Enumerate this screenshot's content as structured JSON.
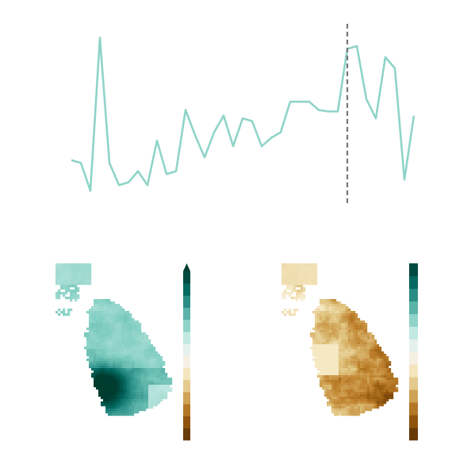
{
  "chart_data": [
    {
      "type": "line",
      "title": "",
      "xlabel": "",
      "ylabel": "",
      "grid": false,
      "axes_visible": false,
      "x": [
        1,
        2,
        3,
        4,
        5,
        6,
        7,
        8,
        9,
        10,
        11,
        12,
        13,
        14,
        15,
        16,
        17,
        18,
        19,
        20,
        21,
        22,
        23,
        24,
        25,
        26,
        27,
        28,
        29,
        30,
        31,
        32,
        33,
        34,
        35,
        36,
        37
      ],
      "series": [
        {
          "color": "#8fd4c8",
          "values": [
            -0.4,
            -0.5,
            -1.5,
            4.0,
            -0.5,
            -1.3,
            -1.2,
            -0.8,
            -1.3,
            0.3,
            -0.9,
            -0.8,
            1.4,
            0.5,
            -0.3,
            0.6,
            1.2,
            0.1,
            1.1,
            1.0,
            0.1,
            0.4,
            0.6,
            1.7,
            1.7,
            1.7,
            1.4,
            1.35,
            1.35,
            3.6,
            3.7,
            1.8,
            1.1,
            3.3,
            2.9,
            -1.1,
            1.2
          ]
        }
      ],
      "marker_line": {
        "x": 30,
        "style": "dashed",
        "color": "#777777"
      },
      "ylim": [
        -2.0,
        4.5
      ]
    },
    {
      "type": "heatmap",
      "title": "",
      "colormap": "BrBG",
      "colorbar": {
        "orientation": "vertical",
        "extend": "max",
        "levels": 14,
        "tick_labels": []
      },
      "colors": [
        "#543005",
        "#8c510a",
        "#bf812d",
        "#dfc27d",
        "#f6e8c3",
        "#f5f5f5",
        "#c7eae5",
        "#80cdc1",
        "#35978f",
        "#01665e",
        "#003c30"
      ]
    },
    {
      "type": "heatmap",
      "title": "",
      "colormap": "BrBG",
      "colorbar": {
        "orientation": "vertical",
        "extend": "neither",
        "levels": 14,
        "tick_labels": []
      },
      "colors": [
        "#543005",
        "#8c510a",
        "#bf812d",
        "#dfc27d",
        "#f6e8c3",
        "#f5f5f5",
        "#c7eae5",
        "#80cdc1",
        "#35978f",
        "#01665e",
        "#003c30"
      ]
    }
  ]
}
